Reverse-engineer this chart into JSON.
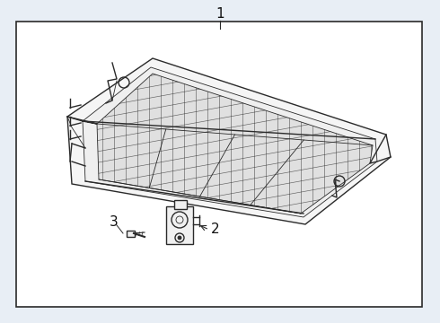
{
  "bg_color": "#e8eef5",
  "box_color": "#ffffff",
  "line_color": "#2a2a2a",
  "label_color": "#111111",
  "title": "",
  "part_labels": [
    "1",
    "2",
    "3"
  ],
  "figsize": [
    4.9,
    3.6
  ],
  "dpi": 100
}
